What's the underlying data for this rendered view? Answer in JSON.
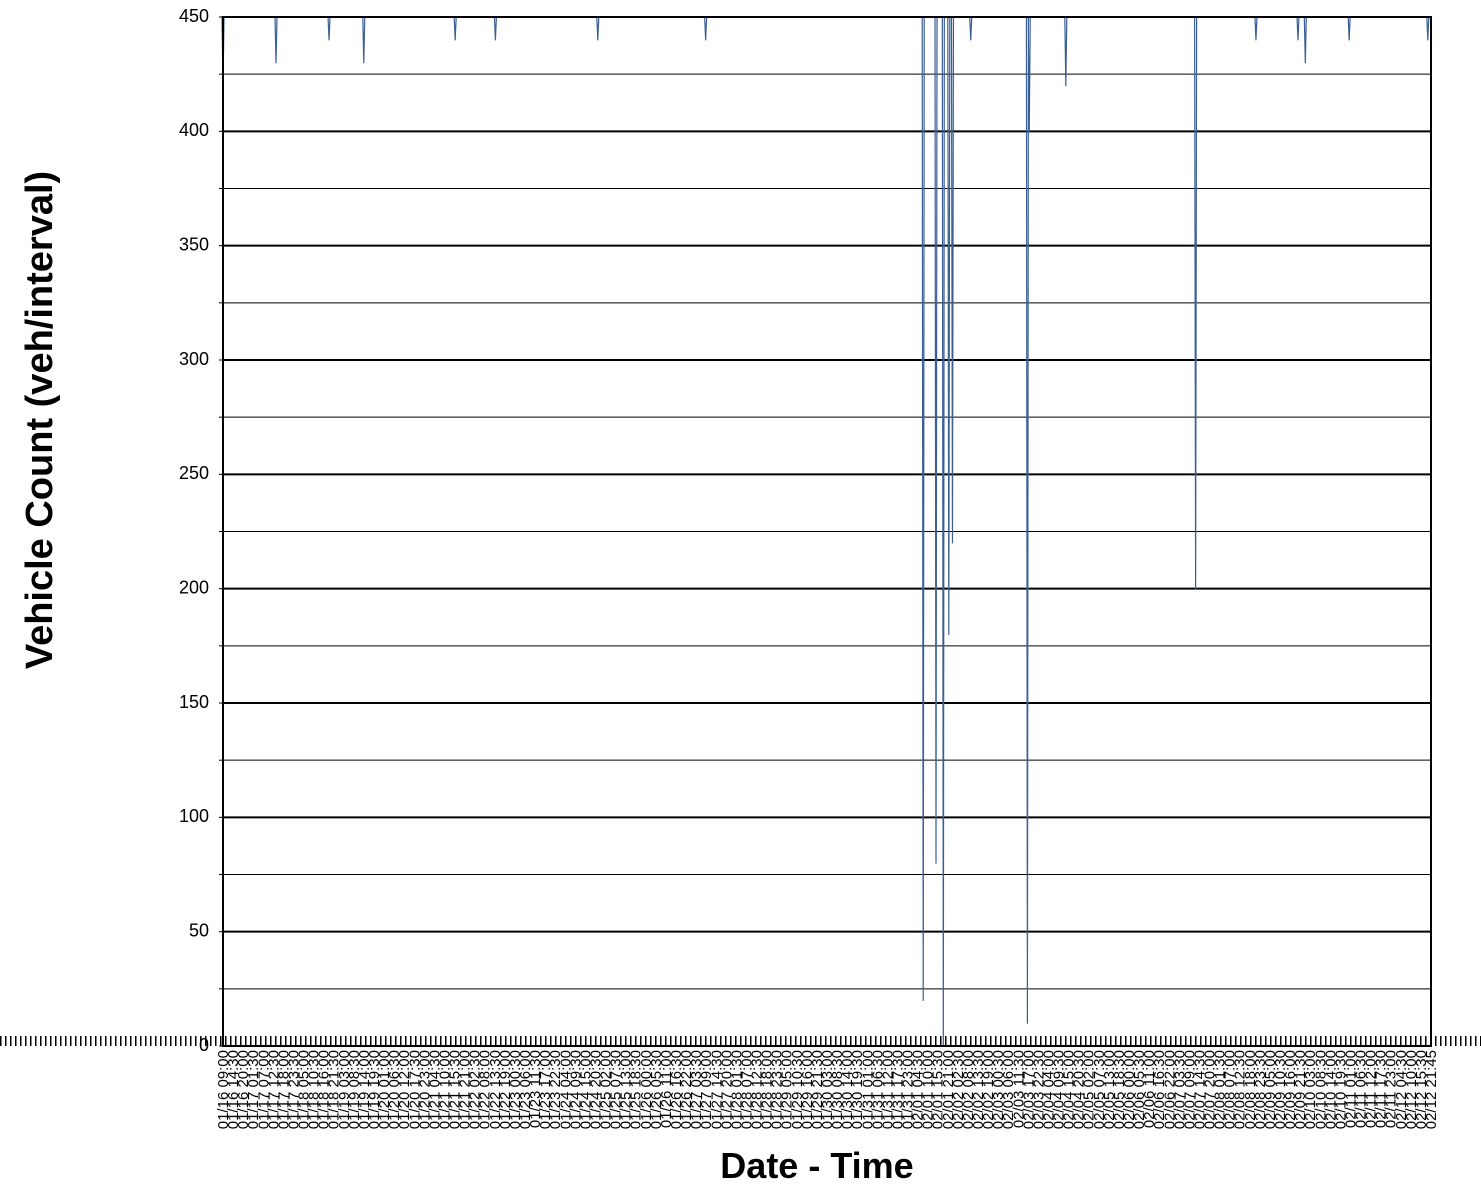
{
  "chart_data": {
    "type": "line",
    "xlabel": "Date - Time",
    "ylabel": "Vehicle Count (veh/interval)",
    "ylim": [
      0,
      450
    ],
    "yticks": [
      0,
      50,
      100,
      150,
      200,
      250,
      300,
      350,
      400,
      450
    ],
    "grid": "horizontal",
    "legend": "none",
    "x_tick_labels": [
      "01/16 09:00",
      "01/16 14:30",
      "01/16 20:00",
      "01/17 01:30",
      "01/17 07:00",
      "01/17 12:30",
      "01/17 18:00",
      "01/17 23:30",
      "01/18 05:00",
      "01/18 10:30",
      "01/18 16:00",
      "01/18 21:30",
      "01/19 03:00",
      "01/19 08:30",
      "01/19 14:00",
      "01/19 19:30",
      "01/20 01:00",
      "01/20 06:30",
      "01/20 12:00",
      "01/20 17:30",
      "01/20 23:00",
      "01/21 04:30",
      "01/21 10:00",
      "01/21 15:30",
      "01/21 21:00",
      "01/22 02:30",
      "01/22 08:00",
      "01/22 13:30",
      "01/22 19:00",
      "01/23 00:30",
      "01/23 06:00",
      "01/23 11:30",
      "01/23 17:00",
      "01/23 22:30",
      "01/24 04:00",
      "01/24 09:30",
      "01/24 15:00",
      "01/24 20:30",
      "01/25 02:00",
      "01/25 07:30",
      "01/25 13:00",
      "01/25 18:30",
      "01/26 00:00",
      "01/26 05:30",
      "01/26 11:00",
      "01/26 16:30",
      "01/26 22:00",
      "01/27 03:30",
      "01/27 09:00",
      "01/27 14:30",
      "01/27 20:00",
      "01/28 01:30",
      "01/28 07:00",
      "01/28 12:30",
      "01/28 18:00",
      "01/28 23:30",
      "01/29 05:00",
      "01/29 10:30",
      "01/29 16:00",
      "01/29 21:30",
      "01/30 03:00",
      "01/30 08:30",
      "01/30 14:00",
      "01/30 19:30",
      "01/31 01:00",
      "01/31 06:30",
      "01/31 12:00",
      "01/31 17:30",
      "01/31 23:00",
      "02/01 04:30",
      "02/01 10:00",
      "02/01 15:30",
      "02/01 21:00",
      "02/02 02:30",
      "02/02 08:00",
      "02/02 13:30",
      "02/02 19:00",
      "02/03 00:30",
      "02/03 06:00",
      "02/03 11:30",
      "02/03 17:00",
      "02/03 22:30",
      "02/04 04:00",
      "02/04 09:30",
      "02/04 15:00",
      "02/04 20:30",
      "02/05 02:00",
      "02/05 07:30",
      "02/05 13:00",
      "02/05 18:30",
      "02/06 00:00",
      "02/06 05:30",
      "02/06 11:00",
      "02/06 16:30",
      "02/06 22:00",
      "02/07 03:30",
      "02/07 09:00",
      "02/07 14:30",
      "02/07 20:00",
      "02/08 01:30",
      "02/08 07:00",
      "02/08 12:30",
      "02/08 18:00",
      "02/08 23:30",
      "02/09 05:00",
      "02/09 10:30",
      "02/09 16:00",
      "02/09 21:30",
      "02/10 03:00",
      "02/10 08:30",
      "02/10 14:00",
      "02/10 19:30",
      "02/11 01:00",
      "02/11 06:30",
      "02/11 12:00",
      "02/11 17:30",
      "02/11 23:00",
      "02/12 04:30",
      "02/12 10:00",
      "02/12 15:30",
      "02/12 21:45"
    ],
    "series": [
      {
        "color": "#3a5f94",
        "baseline": 450,
        "x_range": [
          "01/16 09:00",
          "02/12 21:45"
        ],
        "dips": [
          {
            "x": "01/16 09:00",
            "y": 420
          },
          {
            "x": "01/17 14:00",
            "y": 430
          },
          {
            "x": "01/18 19:00",
            "y": 440
          },
          {
            "x": "01/19 14:00",
            "y": 430
          },
          {
            "x": "01/21 16:00",
            "y": 440
          },
          {
            "x": "01/22 14:00",
            "y": 440
          },
          {
            "x": "01/24 22:00",
            "y": 440
          },
          {
            "x": "01/27 09:00",
            "y": 440
          },
          {
            "x": "02/01 08:00",
            "y": 20
          },
          {
            "x": "02/01 15:00",
            "y": 80
          },
          {
            "x": "02/01 19:00",
            "y": 0
          },
          {
            "x": "02/01 22:00",
            "y": 180
          },
          {
            "x": "02/02 00:00",
            "y": 220
          },
          {
            "x": "02/02 10:00",
            "y": 440
          },
          {
            "x": "02/03 17:00",
            "y": 10
          },
          {
            "x": "02/03 18:00",
            "y": 400
          },
          {
            "x": "02/04 14:00",
            "y": 420
          },
          {
            "x": "02/07 13:00",
            "y": 200
          },
          {
            "x": "02/08 22:00",
            "y": 440
          },
          {
            "x": "02/09 21:00",
            "y": 440
          },
          {
            "x": "02/10 01:00",
            "y": 430
          },
          {
            "x": "02/11 01:00",
            "y": 440
          },
          {
            "x": "02/12 20:00",
            "y": 440
          }
        ]
      }
    ]
  }
}
